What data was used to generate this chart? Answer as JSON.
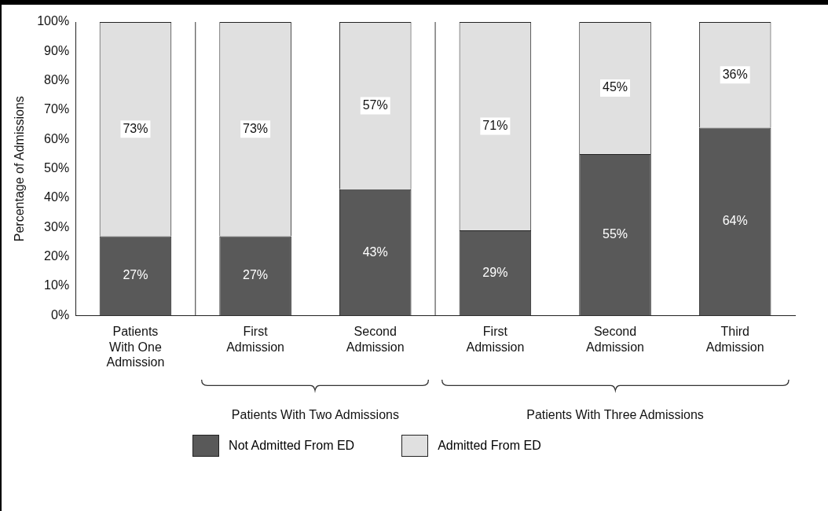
{
  "chart_data": {
    "type": "bar",
    "stacked": true,
    "ylabel": "Percentage of Admissions",
    "categories": [
      "Patients With One Admission",
      "First Admission",
      "Second Admission",
      "First Admission",
      "Second Admission",
      "Third Admission"
    ],
    "series": [
      {
        "name": "Not Admitted From ED",
        "color": "#595959",
        "values": [
          27,
          27,
          43,
          29,
          55,
          64
        ],
        "value_labels": [
          "27%",
          "27%",
          "43%",
          "29%",
          "55%",
          "64%"
        ]
      },
      {
        "name": "Admitted From ED",
        "color": "#e0e0e0",
        "values": [
          73,
          73,
          57,
          71,
          45,
          36
        ],
        "value_labels": [
          "73%",
          "73%",
          "57%",
          "71%",
          "45%",
          "36%"
        ]
      }
    ],
    "ylim": [
      0,
      100
    ],
    "yticks": [
      {
        "value": 0,
        "label": "0%"
      },
      {
        "value": 10,
        "label": "10%"
      },
      {
        "value": 20,
        "label": "20%"
      },
      {
        "value": 30,
        "label": "30%"
      },
      {
        "value": 40,
        "label": "40%"
      },
      {
        "value": 50,
        "label": "50%"
      },
      {
        "value": 60,
        "label": "60%"
      },
      {
        "value": 70,
        "label": "70%"
      },
      {
        "value": 80,
        "label": "80%"
      },
      {
        "value": 90,
        "label": "90%"
      },
      {
        "value": 100,
        "label": "100%"
      }
    ],
    "grid": false,
    "legend": "bottom",
    "annotations": [
      "Patients With Two Admissions",
      "Patients With Three Admissions"
    ]
  }
}
